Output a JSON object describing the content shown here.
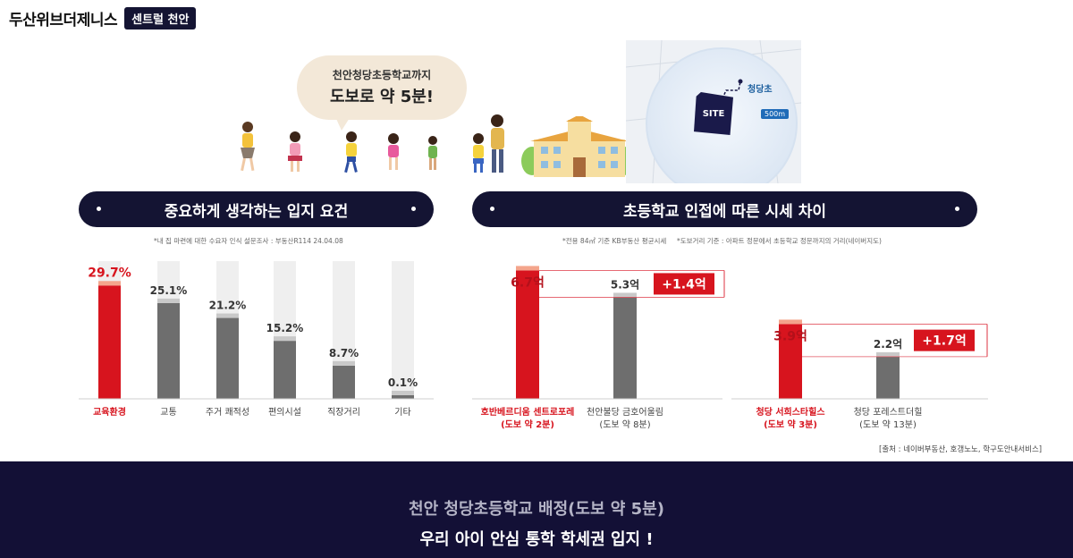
{
  "brand": {
    "name": "두산위브더제니스",
    "badge": "센트럴 천안"
  },
  "illustration": {
    "speech_line1": "천안청당초등학교까지",
    "speech_line2": "도보로 약 5분!",
    "map_school_label": "청당초",
    "map_site_label": "SITE",
    "map_distance": "500m"
  },
  "left_section": {
    "title": "중요하게 생각하는 입지 요건",
    "note": "*내 집 마련에 대한 수요자 인식 설문조사 : 부동산R114 24.04.08"
  },
  "right_section": {
    "title": "초등학교 인접에 따른 시세 차이",
    "note1": "*전용 84㎡ 기준 KB부동산 평균시세",
    "note2": "*도보거리 기준 : 아파트 정문에서 초등학교 정문까지의 거리(네이버지도)"
  },
  "chart_data": [
    {
      "type": "bar",
      "title": "중요하게 생각하는 입지 요건",
      "categories": [
        "교육환경",
        "교통",
        "주거 쾌적성",
        "편의시설",
        "직장거리",
        "기타"
      ],
      "values": [
        29.7,
        25.1,
        21.2,
        15.2,
        8.7,
        0.1
      ],
      "value_labels": [
        "29.7%",
        "25.1%",
        "21.2%",
        "15.2%",
        "8.7%",
        "0.1%"
      ],
      "ylim": [
        0,
        30
      ],
      "highlight_color": "#d7141e",
      "base_color": "#6e6e6e",
      "track_color": "#efefef",
      "grid": false
    },
    {
      "type": "bar",
      "title": "초등학교 인접에 따른 시세 차이",
      "groups": [
        {
          "categories": [
            "호반베르디움 센트로포레",
            "천안불당 금호어울림"
          ],
          "sublabels": [
            "(도보 약 2분)",
            "(도보 약 8분)"
          ],
          "values": [
            6.7,
            5.3
          ],
          "value_labels": [
            "6.7억",
            "5.3억"
          ],
          "diff_label": "+1.4억"
        },
        {
          "categories": [
            "청당 서희스타힐스",
            "청당 포레스트더힐"
          ],
          "sublabels": [
            "(도보 약 3분)",
            "(도보 약 13분)"
          ],
          "values": [
            3.9,
            2.2
          ],
          "value_labels": [
            "3.9억",
            "2.2억"
          ],
          "diff_label": "+1.7억"
        }
      ],
      "ylim": [
        0,
        7
      ],
      "highlight_color": "#d7141e",
      "base_color": "#6e6e6e"
    }
  ],
  "source": "[출처 : 네이버부동산, 호갱노노, 학구도안내서비스]",
  "footer": {
    "line1": "천안 청당초등학교 배정(도보 약 5분)",
    "line2": "우리 아이 안심 통학 학세권 입지 !"
  }
}
